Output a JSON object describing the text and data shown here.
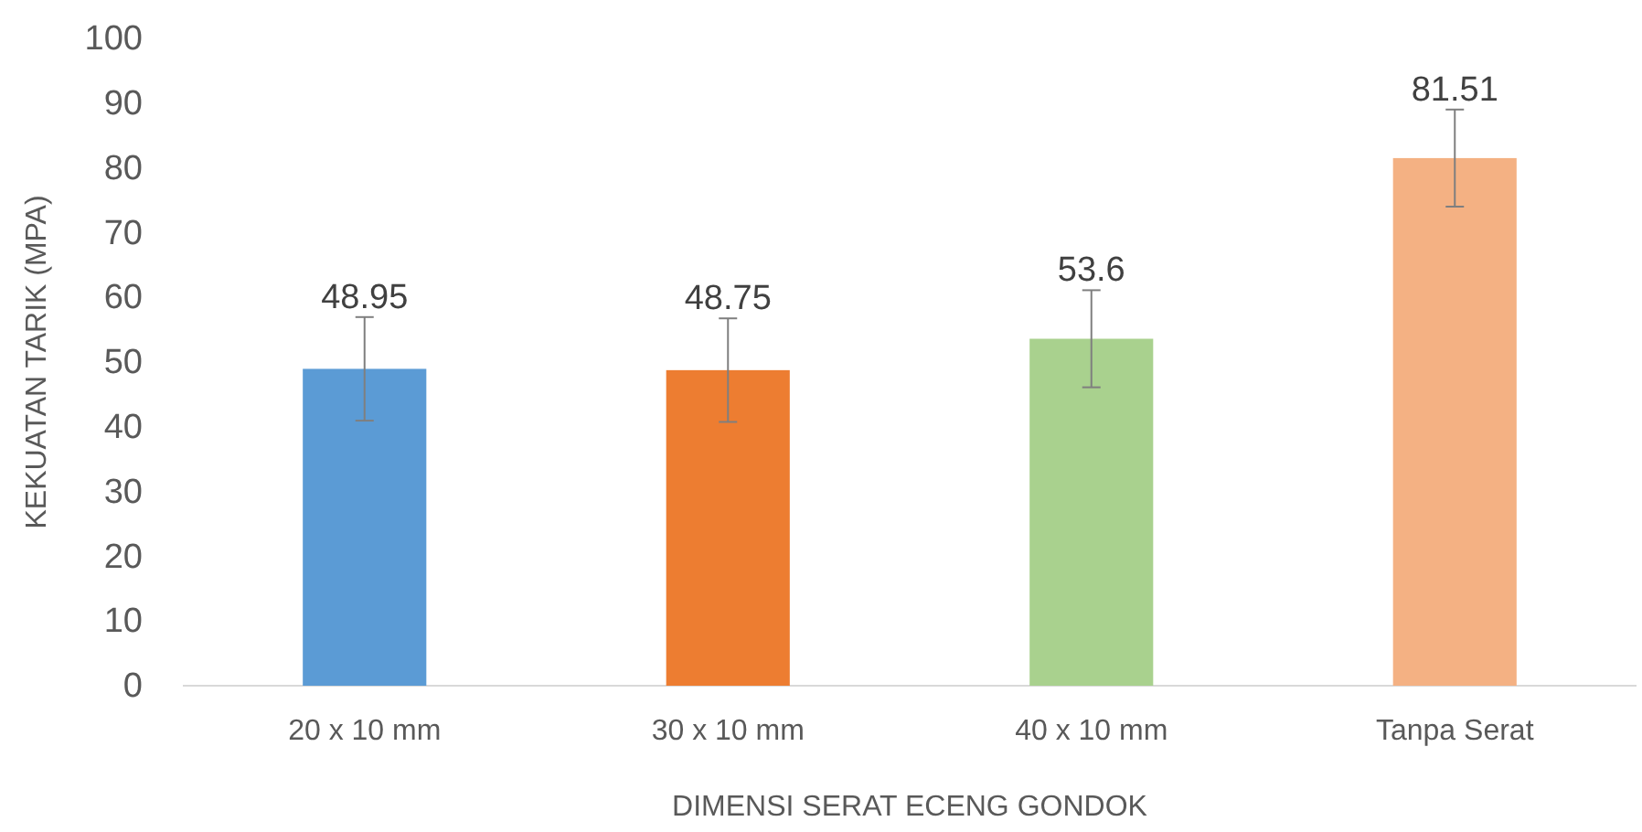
{
  "chart_data": {
    "type": "bar",
    "xlabel": "DIMENSI SERAT ECENG GONDOK",
    "ylabel": "KEKUATAN TARIK (MPA)",
    "categories": [
      "20 x 10 mm",
      "30 x 10 mm",
      "40 x 10 mm",
      "Tanpa Serat"
    ],
    "values": [
      48.95,
      48.75,
      53.6,
      81.51
    ],
    "colors": [
      "#5b9bd5",
      "#ed7d31",
      "#a9d18e",
      "#f4b183"
    ],
    "errors": [
      8,
      8,
      7.5,
      7.5
    ],
    "ylim": [
      0,
      100
    ],
    "yticks": [
      0,
      10,
      20,
      30,
      40,
      50,
      60,
      70,
      80,
      90,
      100
    ],
    "data_labels": true,
    "grid": false
  }
}
